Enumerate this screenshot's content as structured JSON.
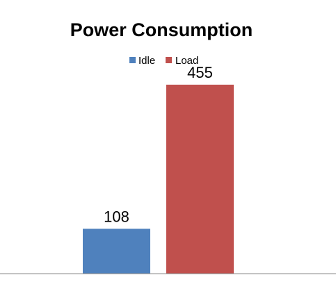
{
  "chart_data": {
    "type": "bar",
    "title": "Power Consumption",
    "xlabel": "",
    "ylabel": "",
    "legend_position": "top",
    "grid": false,
    "ylim": [
      0,
      500
    ],
    "series": [
      {
        "name": "Idle",
        "values": [
          108
        ],
        "color": "#4f81bd",
        "data_label": "108"
      },
      {
        "name": "Load",
        "values": [
          455
        ],
        "color": "#c0504d",
        "data_label": "455"
      }
    ]
  }
}
